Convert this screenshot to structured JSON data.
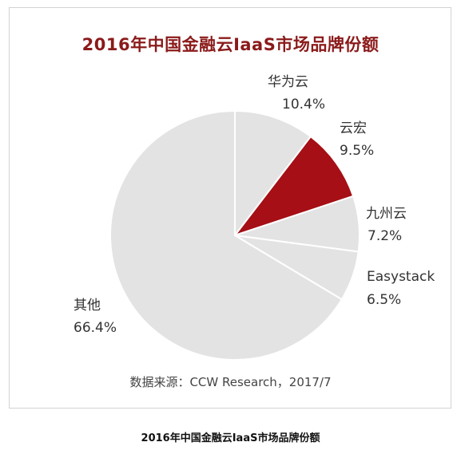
{
  "chart_data": {
    "type": "pie",
    "title": "2016年中国金融云IaaS市场品牌份额",
    "slices": [
      {
        "name": "华为云",
        "value": 10.4,
        "label": "10.4%",
        "color": "#e3e3e3"
      },
      {
        "name": "云宏",
        "value": 9.5,
        "label": "9.5%",
        "color": "#a50f15"
      },
      {
        "name": "九州云",
        "value": 7.2,
        "label": "7.2%",
        "color": "#e3e3e3"
      },
      {
        "name": "Easystack",
        "value": 6.5,
        "label": "6.5%",
        "color": "#e3e3e3"
      },
      {
        "name": "其他",
        "value": 66.4,
        "label": "66.4%",
        "color": "#e3e3e3"
      }
    ],
    "source": "数据来源：CCW Research，2017/7"
  },
  "caption": "2016年中国金融云IaaS市场品牌份额"
}
